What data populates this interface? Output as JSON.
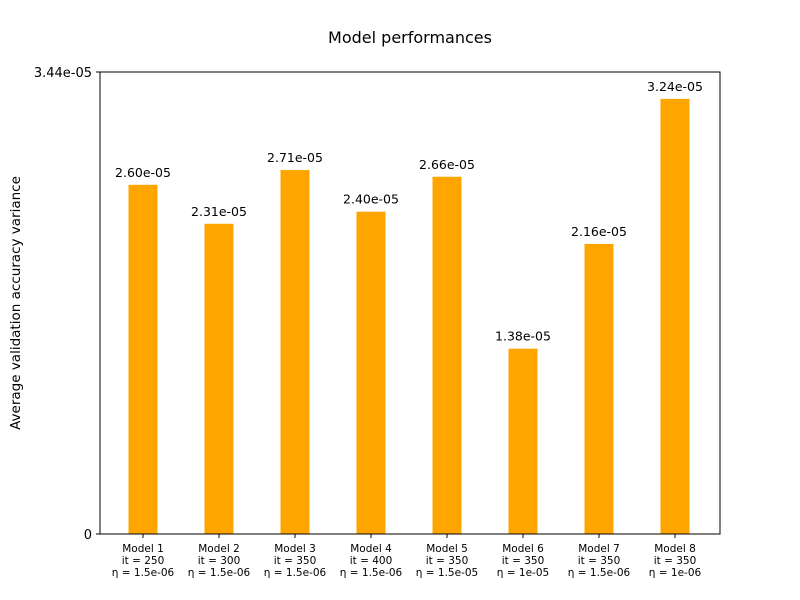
{
  "chart_data": {
    "type": "bar",
    "title": "Model performances",
    "xlabel": "",
    "ylabel": "Average validation accuracy variance",
    "ylim": [
      0,
      3.44e-05
    ],
    "ytick_labels": [
      "0",
      "3.44e-05"
    ],
    "grid": false,
    "legend": "none",
    "bar_color": "#FFA500",
    "categories": [
      [
        "Model 1",
        "it = 250",
        "η = 1.5e-06"
      ],
      [
        "Model 2",
        "it = 300",
        "η = 1.5e-06"
      ],
      [
        "Model 3",
        "it = 350",
        "η = 1.5e-06"
      ],
      [
        "Model 4",
        "it = 400",
        "η = 1.5e-06"
      ],
      [
        "Model 5",
        "it = 350",
        "η = 1.5e-05"
      ],
      [
        "Model 6",
        "it = 350",
        "η = 1e-05"
      ],
      [
        "Model 7",
        "it = 350",
        "η = 1.5e-06"
      ],
      [
        "Model 8",
        "it = 350",
        "η = 1e-06"
      ]
    ],
    "values": [
      2.6e-05,
      2.31e-05,
      2.71e-05,
      2.4e-05,
      2.66e-05,
      1.38e-05,
      2.16e-05,
      3.24e-05
    ],
    "value_labels": [
      "2.60e-05",
      "2.31e-05",
      "2.71e-05",
      "2.40e-05",
      "2.66e-05",
      "1.38e-05",
      "2.16e-05",
      "3.24e-05"
    ]
  }
}
